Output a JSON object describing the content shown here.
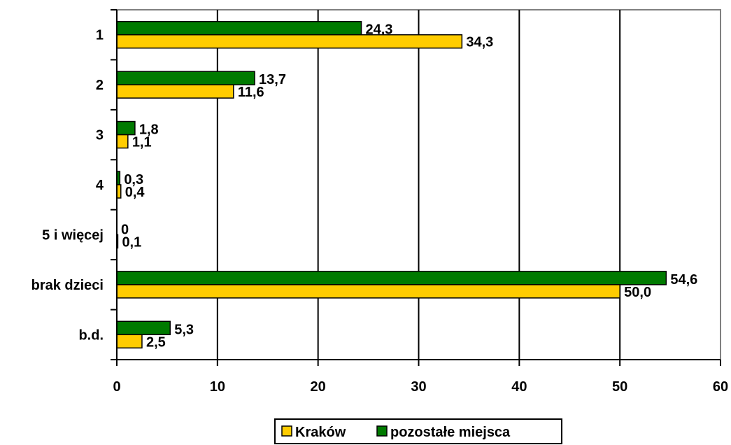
{
  "chart_data": {
    "type": "bar",
    "orientation": "horizontal",
    "categories": [
      "1",
      "2",
      "3",
      "4",
      "5 i więcej",
      "brak dzieci",
      "b.d."
    ],
    "series": [
      {
        "name": "Kraków",
        "color": "#FFCC00",
        "values": [
          34.3,
          11.6,
          1.1,
          0.4,
          0.1,
          50.0,
          2.5
        ],
        "labels": [
          "34,3",
          "11,6",
          "1,1",
          "0,4",
          "0,1",
          "50,0",
          "2,5"
        ]
      },
      {
        "name": "pozostałe miejsca",
        "color": "#007A00",
        "values": [
          24.3,
          13.7,
          1.8,
          0.3,
          0,
          54.6,
          5.3
        ],
        "labels": [
          "24,3",
          "13,7",
          "1,8",
          "0,3",
          "0",
          "54,6",
          "5,3"
        ]
      }
    ],
    "xlim": [
      0,
      60
    ],
    "xticks": [
      0,
      10,
      20,
      30,
      40,
      50,
      60
    ],
    "xtick_labels": [
      "0",
      "10",
      "20",
      "30",
      "40",
      "50",
      "60"
    ],
    "grid": "vertical",
    "legend_position": "bottom"
  }
}
